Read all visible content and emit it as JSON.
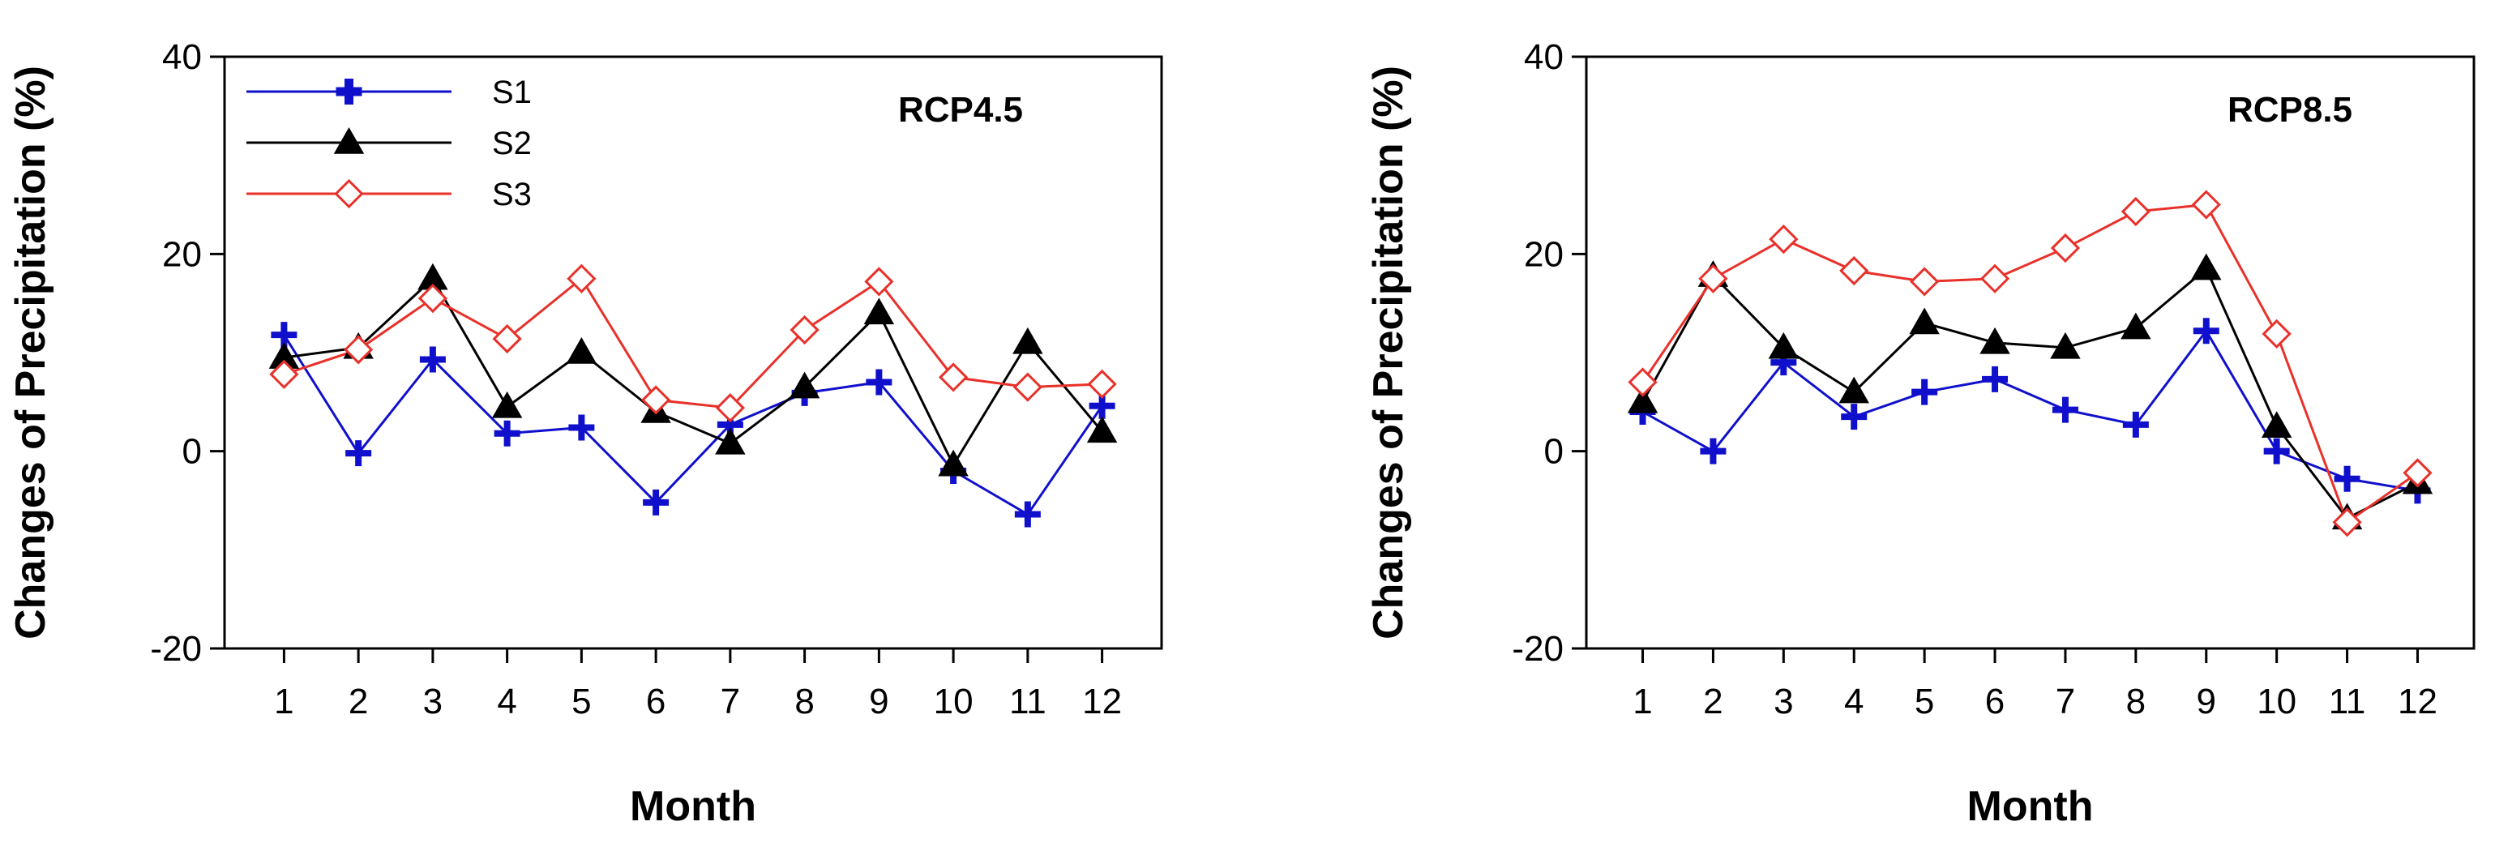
{
  "colors": {
    "S1": "#1010cc",
    "S2": "#000000",
    "S3": "#e8312a",
    "axis": "#000000"
  },
  "chart_data": [
    {
      "type": "line",
      "title": "RCP4.5",
      "xlabel": "Month",
      "ylabel": "Changes of Precipitation (%)",
      "ylim": [
        -20,
        40
      ],
      "yticks": [
        "-20",
        "0",
        "20",
        "40"
      ],
      "categories": [
        "1",
        "2",
        "3",
        "4",
        "5",
        "6",
        "7",
        "8",
        "9",
        "10",
        "11",
        "12"
      ],
      "legend": {
        "position": "top-left",
        "entries": [
          "S1",
          "S2",
          "S3"
        ]
      },
      "series": [
        {
          "name": "S1",
          "marker": "plus",
          "values": [
            11.8,
            -0.2,
            9.3,
            1.8,
            2.4,
            -5.2,
            2.7,
            5.9,
            7.0,
            -2.0,
            -6.4,
            4.6
          ]
        },
        {
          "name": "S2",
          "marker": "triangle",
          "values": [
            9.5,
            10.5,
            17.5,
            4.5,
            10.0,
            4.0,
            0.8,
            6.5,
            14.0,
            -1.4,
            11.0,
            2.0
          ]
        },
        {
          "name": "S3",
          "marker": "diamond",
          "values": [
            7.8,
            10.3,
            15.5,
            11.4,
            17.5,
            5.2,
            4.4,
            12.3,
            17.2,
            7.5,
            6.5,
            6.8
          ]
        }
      ]
    },
    {
      "type": "line",
      "title": "RCP8.5",
      "xlabel": "Month",
      "ylabel": "Changes of Precipitation (%)",
      "ylim": [
        -20,
        40
      ],
      "yticks": [
        "-20",
        "0",
        "20",
        "40"
      ],
      "categories": [
        "1",
        "2",
        "3",
        "4",
        "5",
        "6",
        "7",
        "8",
        "9",
        "10",
        "11",
        "12"
      ],
      "legend": null,
      "series": [
        {
          "name": "S1",
          "marker": "plus",
          "values": [
            4.0,
            0.0,
            9.0,
            3.5,
            6.0,
            7.3,
            4.2,
            2.7,
            12.2,
            0.0,
            -2.8,
            -4.0
          ]
        },
        {
          "name": "S2",
          "marker": "triangle",
          "values": [
            5.0,
            17.8,
            10.5,
            6.0,
            13.0,
            11.0,
            10.5,
            12.5,
            18.5,
            2.5,
            -6.8,
            -3.2
          ]
        },
        {
          "name": "S3",
          "marker": "diamond",
          "values": [
            7.0,
            17.5,
            21.5,
            18.3,
            17.2,
            17.5,
            20.6,
            24.3,
            25.0,
            11.9,
            -7.2,
            -2.2
          ]
        }
      ]
    }
  ]
}
